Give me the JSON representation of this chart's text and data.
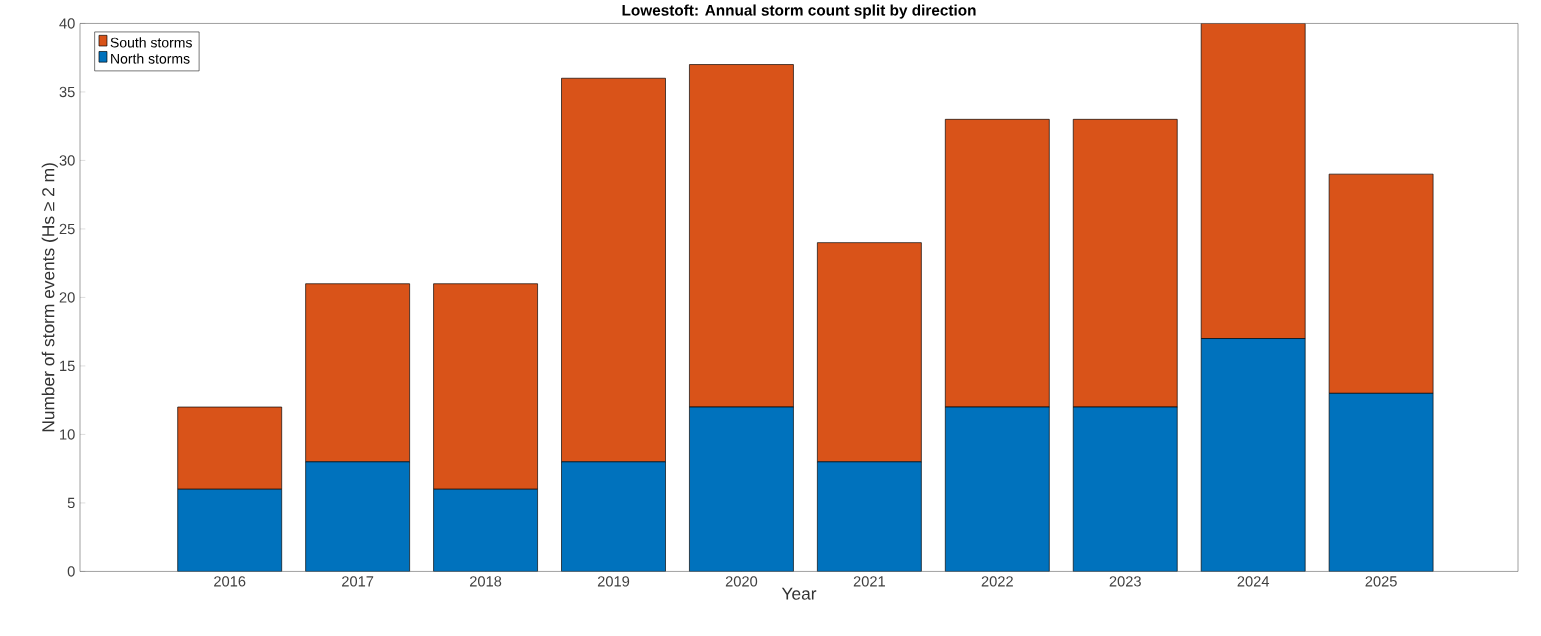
{
  "chart_data": {
    "type": "bar",
    "title": "Lowestoft: Annual storm count split by direction",
    "xlabel": "Year",
    "ylabel": "Number of storm events (Hs ≥ 2 m)",
    "categories": [
      "2016",
      "2017",
      "2018",
      "2019",
      "2020",
      "2021",
      "2022",
      "2023",
      "2024",
      "2025"
    ],
    "stacked": true,
    "series": [
      {
        "name": "North storms",
        "color": "#0072bd",
        "values": [
          6,
          8,
          6,
          8,
          12,
          8,
          12,
          12,
          17,
          13
        ]
      },
      {
        "name": "South storms",
        "color": "#d95319",
        "values": [
          6,
          13,
          15,
          28,
          25,
          16,
          21,
          21,
          23,
          16
        ]
      }
    ],
    "ylim": [
      0,
      40
    ],
    "yticks": [
      0,
      5,
      10,
      15,
      20,
      25,
      30,
      35,
      40
    ],
    "legend": "top left"
  }
}
